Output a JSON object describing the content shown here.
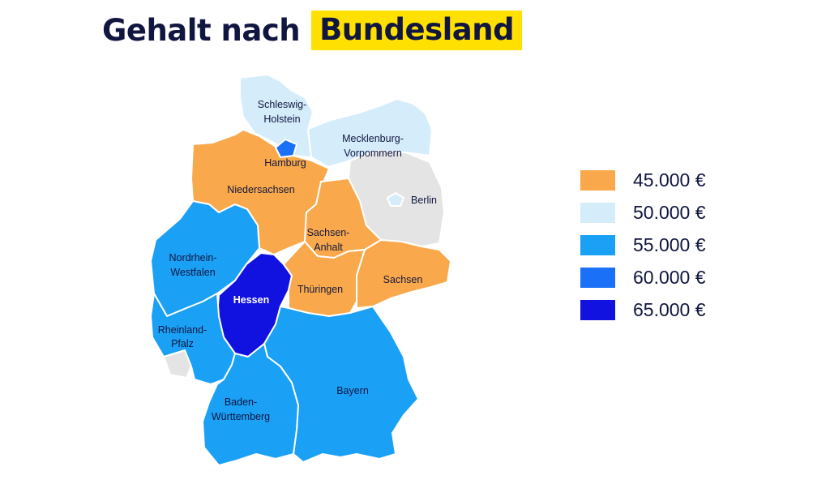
{
  "title": {
    "prefix": "Gehalt nach",
    "highlight": "Bundesland"
  },
  "colors": {
    "orange": "#f9a94b",
    "lightblue": "#d5ecfb",
    "midblue": "#1aa0f5",
    "blue": "#1a70f7",
    "darkblue": "#1212e0",
    "grey": "#e4e4e4",
    "highlight": "#ffe000",
    "text": "#10163f"
  },
  "legend": [
    {
      "label": "45.000 €",
      "color": "#f9a94b"
    },
    {
      "label": "50.000 €",
      "color": "#d5ecfb"
    },
    {
      "label": "55.000 €",
      "color": "#1aa0f5"
    },
    {
      "label": "60.000 €",
      "color": "#1a70f7"
    },
    {
      "label": "65.000 €",
      "color": "#1212e0"
    }
  ],
  "regions": {
    "schleswig_holstein": {
      "line1": "Schleswig-",
      "line2": "Holstein",
      "salary": "50.000 €"
    },
    "mecklenburg": {
      "line1": "Mecklenburg-",
      "line2": "Vorpommern",
      "salary": "50.000 €"
    },
    "hamburg": {
      "name": "Hamburg",
      "salary": "60.000 €"
    },
    "berlin": {
      "name": "Berlin"
    },
    "niedersachsen": {
      "name": "Niedersachsen",
      "salary": "45.000 €"
    },
    "sachsen_anhalt": {
      "line1": "Sachsen-",
      "line2": "Anhalt",
      "salary": "45.000 €"
    },
    "nrw": {
      "line1": "Nordrhein-",
      "line2": "Westfalen",
      "salary": "55.000 €"
    },
    "hessen": {
      "name": "Hessen",
      "salary": "65.000 €"
    },
    "thueringen": {
      "name": "Thüringen",
      "salary": "45.000 €"
    },
    "sachsen": {
      "name": "Sachsen",
      "salary": "45.000 €"
    },
    "rheinland_pfalz": {
      "line1": "Rheinland-",
      "line2": "Pfalz",
      "salary": "55.000 €"
    },
    "bayern": {
      "name": "Bayern",
      "salary": "55.000 €"
    },
    "bw": {
      "line1": "Baden-",
      "line2": "Württemberg",
      "salary": "55.000 €"
    }
  }
}
